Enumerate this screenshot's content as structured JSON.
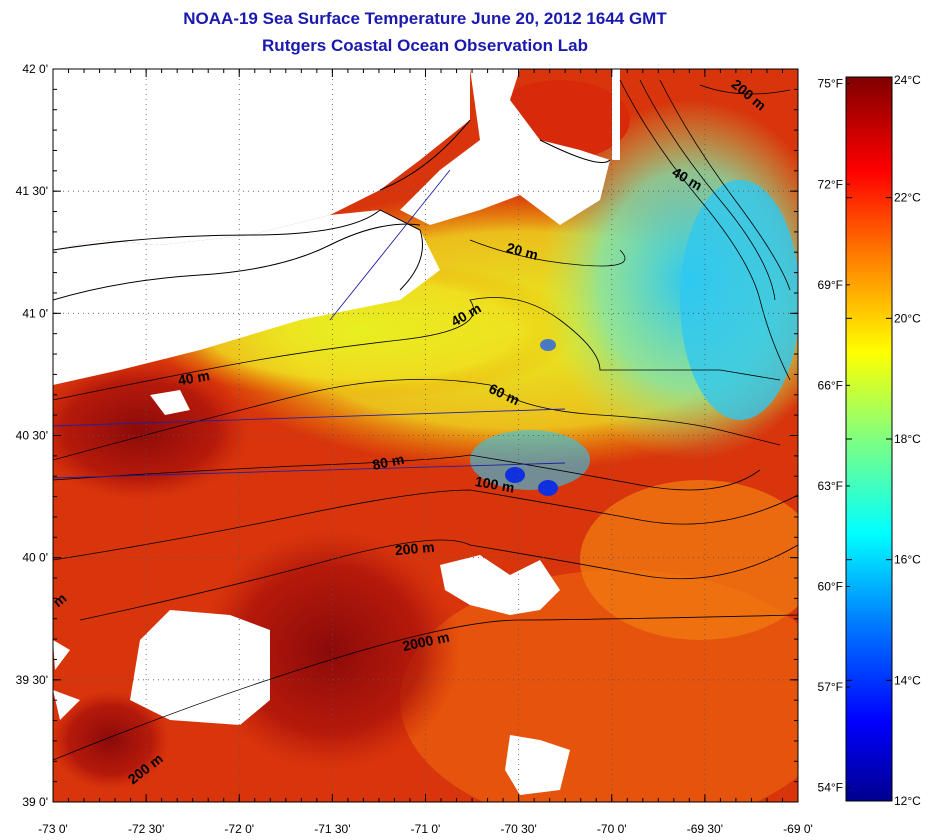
{
  "title": "NOAA-19 Sea Surface Temperature June 20, 2012 1644 GMT",
  "subtitle": "Rutgers Coastal Ocean Observation Lab",
  "map": {
    "lon_ticks": [
      "-73 0'",
      "-72 30'",
      "-72 0'",
      "-71 30'",
      "-71 0'",
      "-70 30'",
      "-70 0'",
      "-69 30'",
      "-69 0'"
    ],
    "lat_ticks": [
      "42 0'",
      "41 30'",
      "41 0'",
      "40 30'",
      "40 0'",
      "39 30'",
      "39 0'"
    ],
    "lon_range": [
      -73,
      -69
    ],
    "lat_range": [
      39,
      42
    ],
    "contour_labels": [
      "200 m",
      "40 m",
      "20 m",
      "40 m",
      "40 m",
      "60 m",
      "80 m",
      "100 m",
      "200 m",
      "2000 m",
      "200 m",
      "m"
    ]
  },
  "colorbar": {
    "celsius_ticks": [
      "24°C",
      "22°C",
      "20°C",
      "18°C",
      "16°C",
      "14°C",
      "12°C"
    ],
    "fahrenheit_ticks": [
      "75°F",
      "72°F",
      "69°F",
      "66°F",
      "63°F",
      "60°F",
      "57°F",
      "54°F"
    ],
    "range_c": [
      12,
      24
    ],
    "colors": [
      "#00008f",
      "#0000ff",
      "#0080ff",
      "#00ffff",
      "#80ff80",
      "#ffff00",
      "#ff8000",
      "#ff0000",
      "#800000"
    ]
  },
  "colors": {
    "title": "#1a1ab0",
    "land": "#ffffff",
    "warm": "#c41a0a",
    "cool": "#2ec8f0"
  }
}
